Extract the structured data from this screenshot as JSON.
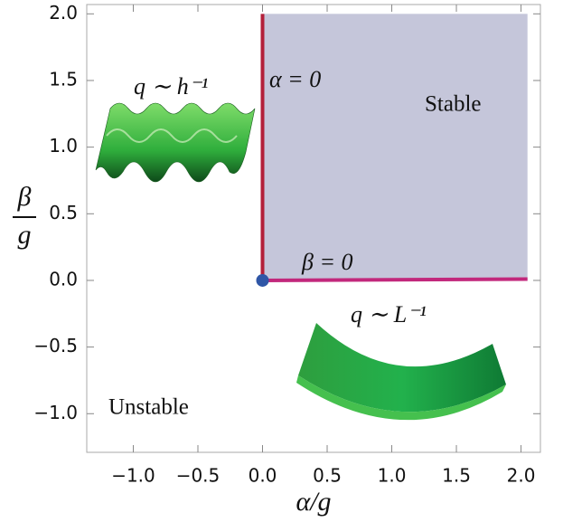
{
  "chart_data": {
    "type": "region",
    "xlabel": "α/g",
    "ylabel": {
      "numerator": "β",
      "denominator": "g"
    },
    "xlim": [
      -1.36,
      2.15
    ],
    "ylim": [
      -1.29,
      2.07
    ],
    "xticks": [
      {
        "value": -1,
        "label": "−1.0"
      },
      {
        "value": -0.5,
        "label": "−0.5"
      },
      {
        "value": 0,
        "label": "0.0"
      },
      {
        "value": 0.5,
        "label": "0.5"
      },
      {
        "value": 1,
        "label": "1.0"
      },
      {
        "value": 1.5,
        "label": "1.5"
      },
      {
        "value": 2,
        "label": "2.0"
      }
    ],
    "yticks": [
      {
        "value": -1,
        "label": "−1.0"
      },
      {
        "value": -0.5,
        "label": "−0.5"
      },
      {
        "value": 0,
        "label": "0.0"
      },
      {
        "value": 0.5,
        "label": "0.5"
      },
      {
        "value": 1,
        "label": "1.0"
      },
      {
        "value": 1.5,
        "label": "1.5"
      },
      {
        "value": 2,
        "label": "2.0"
      }
    ],
    "regions": [
      {
        "name": "Stable",
        "x": [
          0,
          2.05
        ],
        "y": [
          0,
          2.0
        ],
        "color": "#c5c6da"
      }
    ],
    "lines": [
      {
        "name": "α = 0",
        "x": [
          0,
          0
        ],
        "y": [
          0,
          2.0
        ],
        "color": "#b3203a"
      },
      {
        "name": "β = 0",
        "x": [
          0,
          2.05
        ],
        "y": [
          0,
          0.01
        ],
        "color": "#c2287c"
      }
    ],
    "point": {
      "x": 0,
      "y": 0,
      "color": "#2f56a6"
    },
    "annotations": [
      "q ∼ h⁻¹",
      "q ∼ L⁻¹",
      "Unstable"
    ]
  }
}
